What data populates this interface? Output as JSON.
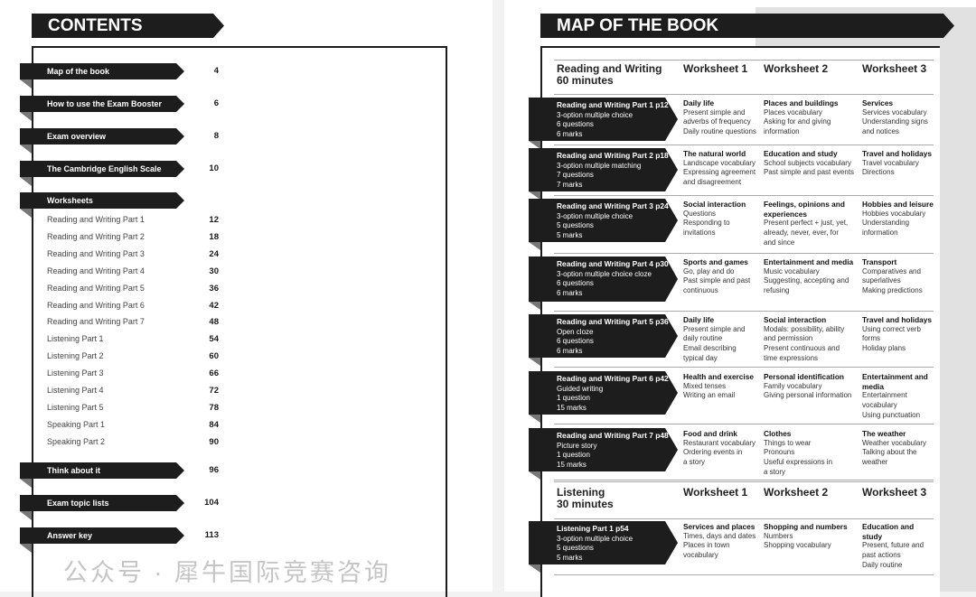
{
  "contents": {
    "title": "CONTENTS",
    "tabs_top": [
      {
        "label": "Map of the book",
        "page": "4"
      },
      {
        "label": "How to use the Exam Booster",
        "page": "6"
      },
      {
        "label": "Exam overview",
        "page": "8"
      },
      {
        "label": "The Cambridge English Scale",
        "page": "10"
      },
      {
        "label": "Worksheets",
        "page": ""
      }
    ],
    "worksheets": [
      {
        "label": "Reading and Writing Part 1",
        "page": "12"
      },
      {
        "label": "Reading and Writing Part 2",
        "page": "18"
      },
      {
        "label": "Reading and Writing Part 3",
        "page": "24"
      },
      {
        "label": "Reading and Writing Part 4",
        "page": "30"
      },
      {
        "label": "Reading and Writing Part 5",
        "page": "36"
      },
      {
        "label": "Reading and Writing Part 6",
        "page": "42"
      },
      {
        "label": "Reading and Writing Part 7",
        "page": "48"
      },
      {
        "label": "Listening Part 1",
        "page": "54"
      },
      {
        "label": "Listening Part 2",
        "page": "60"
      },
      {
        "label": "Listening Part 3",
        "page": "66"
      },
      {
        "label": "Listening Part 4",
        "page": "72"
      },
      {
        "label": "Listening Part 5",
        "page": "78"
      },
      {
        "label": "Speaking Part 1",
        "page": "84"
      },
      {
        "label": "Speaking Part 2",
        "page": "90"
      }
    ],
    "tabs_bottom": [
      {
        "label": "Think about it",
        "page": "96"
      },
      {
        "label": "Exam topic lists",
        "page": "104"
      },
      {
        "label": "Answer key",
        "page": "113"
      }
    ]
  },
  "map": {
    "title": "MAP OF THE BOOK",
    "sections": [
      {
        "heading": [
          "Reading and Writing",
          "60 minutes"
        ],
        "columns": [
          "Worksheet 1",
          "Worksheet 2",
          "Worksheet 3"
        ],
        "rows": [
          {
            "part": "Reading and Writing Part 1 p12",
            "details": [
              "3-option multiple choice",
              "6 questions",
              "6 marks"
            ],
            "cells": [
              {
                "title": "Daily life",
                "lines": [
                  "Present simple and",
                  "adverbs of frequency",
                  "Daily routine questions"
                ]
              },
              {
                "title": "Places and buildings",
                "lines": [
                  "Places vocabulary",
                  "Asking for and giving",
                  "information"
                ]
              },
              {
                "title": "Services",
                "lines": [
                  "Services vocabulary",
                  "Understanding signs",
                  "and notices"
                ]
              }
            ]
          },
          {
            "part": "Reading and Writing Part 2 p18",
            "details": [
              "3-option multiple matching",
              "7 questions",
              "7 marks"
            ],
            "cells": [
              {
                "title": "The natural world",
                "lines": [
                  "Landscape vocabulary",
                  "Expressing agreement",
                  "and disagreement"
                ]
              },
              {
                "title": "Education and study",
                "lines": [
                  "School subjects vocabulary",
                  "Past simple and past events"
                ]
              },
              {
                "title": "Travel and holidays",
                "lines": [
                  "Travel vocabulary",
                  "Directions"
                ]
              }
            ]
          },
          {
            "part": "Reading and Writing Part 3 p24",
            "details": [
              "3-option multiple choice",
              "5 questions",
              "5 marks"
            ],
            "cells": [
              {
                "title": "Social interaction",
                "lines": [
                  "Questions",
                  "Responding to",
                  "invitations"
                ]
              },
              {
                "title": "Feelings, opinions and experiences",
                "lines": [
                  "Present perfect + just, yet,",
                  "already, never, ever, for",
                  "and since"
                ]
              },
              {
                "title": "Hobbies and leisure",
                "lines": [
                  "Hobbies vocabulary",
                  "Understanding",
                  "information"
                ]
              }
            ]
          },
          {
            "part": "Reading and Writing Part 4 p30",
            "details": [
              "3-option multiple choice cloze",
              "6 questions",
              "6 marks"
            ],
            "cells": [
              {
                "title": "Sports and games",
                "lines": [
                  "Go, play and do",
                  "Past simple and past",
                  "continuous"
                ]
              },
              {
                "title": "Entertainment and media",
                "lines": [
                  "Music vocabulary",
                  "Suggesting, accepting and",
                  "refusing"
                ]
              },
              {
                "title": "Transport",
                "lines": [
                  "Comparatives and",
                  "superlatives",
                  "Making predictions"
                ]
              }
            ]
          },
          {
            "part": "Reading and Writing Part 5 p36",
            "details": [
              "Open cloze",
              "6 questions",
              "6 marks"
            ],
            "cells": [
              {
                "title": "Daily life",
                "lines": [
                  "Present simple and",
                  "daily routine",
                  "Email describing",
                  "typical day"
                ]
              },
              {
                "title": "Social interaction",
                "lines": [
                  "Modals: possibility, ability",
                  "and permission",
                  "Present continuous and",
                  "time expressions"
                ]
              },
              {
                "title": "Travel and holidays",
                "lines": [
                  "Using correct verb",
                  "forms",
                  "Holiday plans"
                ]
              }
            ]
          },
          {
            "part": "Reading and Writing Part 6 p42",
            "details": [
              "Guided writing",
              "1 question",
              "15 marks"
            ],
            "cells": [
              {
                "title": "Health and exercise",
                "lines": [
                  "Mixed tenses",
                  "Writing an email"
                ]
              },
              {
                "title": "Personal identification",
                "lines": [
                  "Family vocabulary",
                  "Giving personal information"
                ]
              },
              {
                "title": "Entertainment and media",
                "lines": [
                  "Entertainment",
                  "vocabulary",
                  "Using punctuation"
                ]
              }
            ]
          },
          {
            "part": "Reading and Writing Part 7 p48",
            "details": [
              "Picture story",
              "1 question",
              "15 marks"
            ],
            "cells": [
              {
                "title": "Food and drink",
                "lines": [
                  "Restaurant vocabulary",
                  "Ordering events in",
                  "a story"
                ]
              },
              {
                "title": "Clothes",
                "lines": [
                  "Things to wear",
                  "Pronouns",
                  "Useful expressions in",
                  "a story"
                ]
              },
              {
                "title": "The weather",
                "lines": [
                  "Weather vocabulary",
                  "Talking about the",
                  "weather"
                ]
              }
            ]
          }
        ]
      },
      {
        "heading": [
          "Listening",
          "30 minutes"
        ],
        "columns": [
          "Worksheet 1",
          "Worksheet 2",
          "Worksheet 3"
        ],
        "rows": [
          {
            "part": "Listening Part 1 p54",
            "details": [
              "3-option multiple choice",
              "5 questions",
              "5 marks"
            ],
            "cells": [
              {
                "title": "Services and places",
                "lines": [
                  "Times, days and dates",
                  "Places in town",
                  "vocabulary"
                ]
              },
              {
                "title": "Shopping and numbers",
                "lines": [
                  "Numbers",
                  "Shopping vocabulary"
                ]
              },
              {
                "title": "Education and study",
                "lines": [
                  "Present, future and",
                  "past actions",
                  "Daily routine"
                ]
              }
            ]
          }
        ]
      }
    ]
  },
  "watermark": "公众号 · 犀牛国际竞赛咨询"
}
